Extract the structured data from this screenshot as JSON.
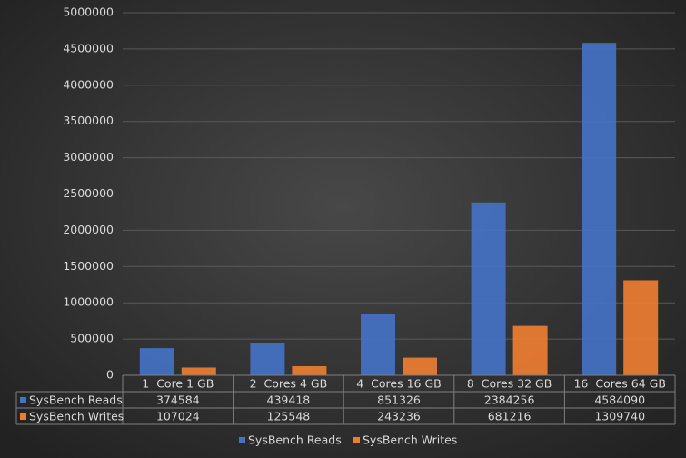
{
  "chart_data": {
    "type": "bar",
    "categories": [
      "1  Core 1 GB",
      "2  Cores 4 GB",
      "4  Cores 16 GB",
      "8  Cores 32 GB",
      "16  Cores 64 GB"
    ],
    "series": [
      {
        "name": "SysBench Reads",
        "color": "#4472c4",
        "values": [
          374584,
          439418,
          851326,
          2384256,
          4584090
        ]
      },
      {
        "name": "SysBench Writes",
        "color": "#ed7d31",
        "values": [
          107024,
          125548,
          243236,
          681216,
          1309740
        ]
      }
    ],
    "ylim": [
      0,
      5000000
    ],
    "yticks": [
      0,
      500000,
      1000000,
      1500000,
      2000000,
      2500000,
      3000000,
      3500000,
      4000000,
      4500000,
      5000000
    ],
    "grid": true,
    "legend": "bottom"
  }
}
